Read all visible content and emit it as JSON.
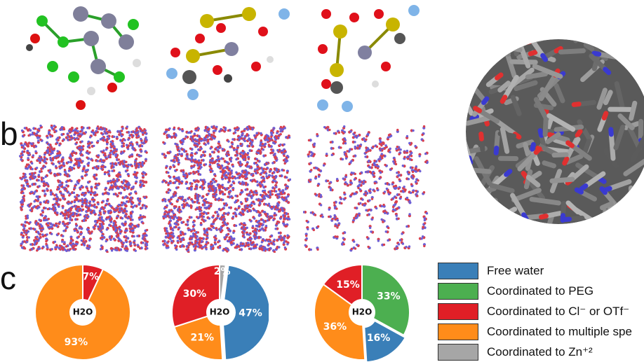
{
  "panels": {
    "b_label": "b",
    "c_label": "c"
  },
  "colors": {
    "free_water": "#3a7fb8",
    "peg": "#4caf50",
    "anion": "#e01f26",
    "multiple": "#ff8c1a",
    "zn": "#a6a6a6",
    "sim_red": "#d9404e",
    "sim_blue": "#6c5fd6"
  },
  "chart_data": [
    {
      "type": "pie",
      "center_label": "H2O",
      "slices": [
        {
          "name": "Coordinated to Cl- or OTf-",
          "value": 7,
          "label": "7%"
        },
        {
          "name": "Coordinated to multiple species",
          "value": 93,
          "label": "93%"
        }
      ]
    },
    {
      "type": "pie",
      "center_label": "H2O",
      "slices": [
        {
          "name": "Coordinated to Zn+2",
          "value": 2,
          "label": "2%"
        },
        {
          "name": "Free water",
          "value": 47,
          "label": "47%"
        },
        {
          "name": "Coordinated to multiple species",
          "value": 21,
          "label": "21%"
        },
        {
          "name": "Coordinated to Cl- or OTf-",
          "value": 30,
          "label": "30%"
        }
      ]
    },
    {
      "type": "pie",
      "center_label": "H2O",
      "slices": [
        {
          "name": "Coordinated to PEG",
          "value": 33,
          "label": "33%"
        },
        {
          "name": "Free water",
          "value": 16,
          "label": "16%"
        },
        {
          "name": "Coordinated to multiple species",
          "value": 36,
          "label": "36%"
        },
        {
          "name": "Coordinated to Cl- or OTf-",
          "value": 15,
          "label": "15%"
        }
      ]
    }
  ],
  "legend": {
    "items": [
      {
        "label": "Free water",
        "color": "#3a7fb8"
      },
      {
        "label": "Coordinated to PEG",
        "color": "#4caf50"
      },
      {
        "label": "Coordinated to Cl⁻ or OTf⁻",
        "color": "#e01f26"
      },
      {
        "label": "Coordinated to multiple spe",
        "color": "#ff8c1a"
      },
      {
        "label": "Coordinated to Zn⁺²",
        "color": "#a6a6a6"
      }
    ]
  }
}
